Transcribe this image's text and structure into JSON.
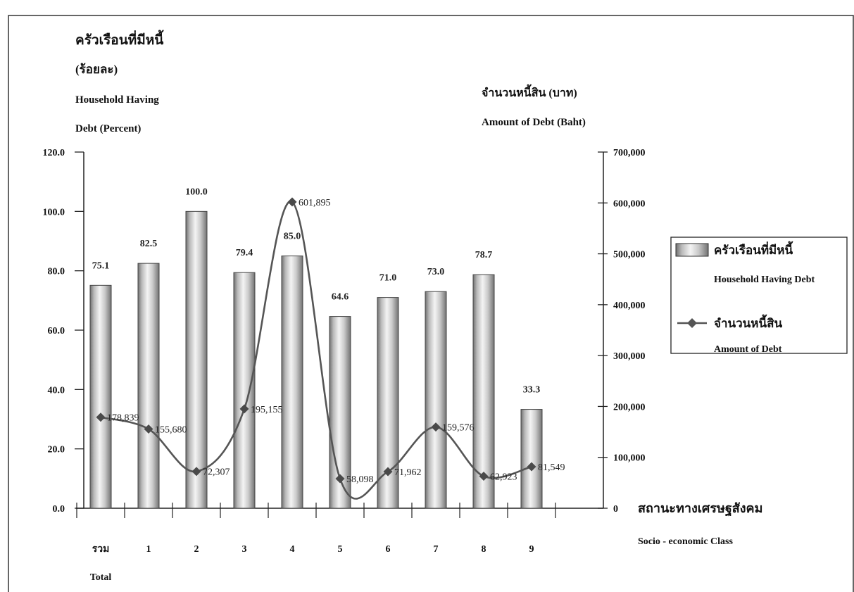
{
  "chart_data": {
    "type": "bar+line",
    "left_axis_title_thai": "ครัวเรือนที่มีหนี้",
    "left_axis_unit_thai": "(ร้อยละ)",
    "left_axis_title_en_line1": "Household Having",
    "left_axis_title_en_line2": "Debt (Percent)",
    "right_axis_title_thai": "จำนวนหนี้สิน (บาท)",
    "right_axis_title_en": "Amount of Debt (Baht)",
    "x_axis_title_thai": "สถานะทางเศรษฐสังคม",
    "x_axis_title_en": "Socio - economic  Class",
    "categories": [
      "รวม",
      "1",
      "2",
      "3",
      "4",
      "5",
      "6",
      "7",
      "8",
      "9"
    ],
    "category_sublabel": "Total",
    "left_ylim": [
      0,
      120
    ],
    "left_ticks": [
      "0.0",
      "20.0",
      "40.0",
      "60.0",
      "80.0",
      "100.0",
      "120.0"
    ],
    "right_ylim": [
      0,
      700000
    ],
    "right_ticks": [
      "0",
      "100,000",
      "200,000",
      "300,000",
      "400,000",
      "500,000",
      "600,000",
      "700,000"
    ],
    "series": [
      {
        "name": "ครัวเรือนที่มีหนี้",
        "name_en": "Household Having Debt",
        "kind": "bar",
        "axis": "left",
        "values": [
          75.1,
          82.5,
          100.0,
          79.4,
          85.0,
          64.6,
          71.0,
          73.0,
          78.7,
          33.3
        ],
        "labels": [
          "75.1",
          "82.5",
          "100.0",
          "79.4",
          "85.0",
          "64.6",
          "71.0",
          "73.0",
          "78.7",
          "33.3"
        ]
      },
      {
        "name": "จำนวนหนี้สิน",
        "name_en": "Amount of Debt",
        "kind": "line",
        "axis": "right",
        "values": [
          178839,
          155680,
          72307,
          195155,
          601895,
          58098,
          71962,
          159576,
          62923,
          81549
        ],
        "labels": [
          "178,839",
          "155,680",
          "72,307",
          "195,155",
          "601,895",
          "58,098",
          "71,962",
          "159,576",
          "62,923",
          "81,549"
        ]
      }
    ],
    "legend_position": "right",
    "grid": false
  }
}
